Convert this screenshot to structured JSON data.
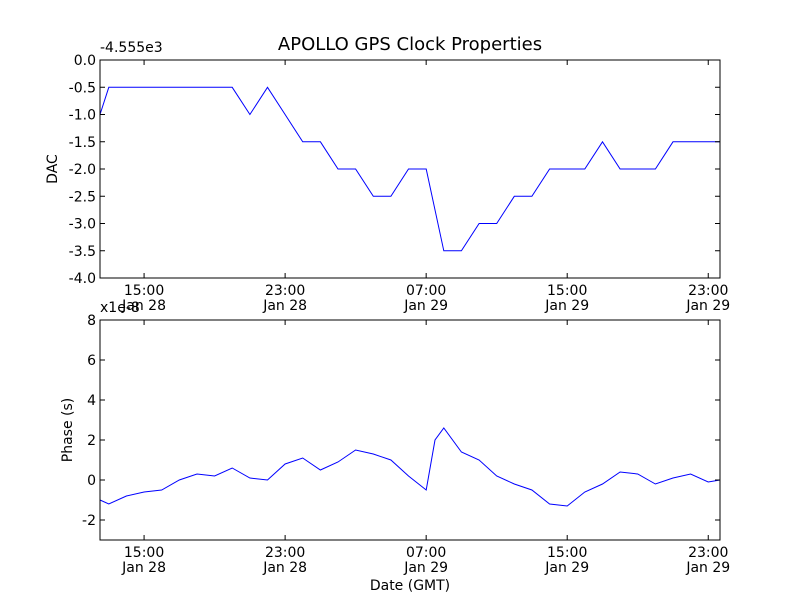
{
  "figure": {
    "title": "APOLLO GPS Clock Properties",
    "xlabel": "Date (GMT)",
    "x_tick_labels": [
      {
        "line1": "15:00",
        "line2": "Jan 28"
      },
      {
        "line1": "23:00",
        "line2": "Jan 28"
      },
      {
        "line1": "07:00",
        "line2": "Jan 29"
      },
      {
        "line1": "15:00",
        "line2": "Jan 29"
      },
      {
        "line1": "23:00",
        "line2": "Jan 29"
      }
    ]
  },
  "chart_data": [
    {
      "type": "line",
      "ylabel": "DAC",
      "y_offset_label": "-4.555e3",
      "ylim": [
        -4.0,
        0.0
      ],
      "xlim": [
        "Jan 28 12:30",
        "Jan 29 23:40"
      ],
      "x_ticks": [
        "Jan 28 15:00",
        "Jan 28 23:00",
        "Jan 29 07:00",
        "Jan 29 15:00",
        "Jan 29 23:00"
      ],
      "y_tick_labels": [
        "0.0",
        "-0.5",
        "-1.0",
        "-1.5",
        "-2.0",
        "-2.5",
        "-3.0",
        "-3.5",
        "-4.0"
      ],
      "grid": false,
      "series": [
        {
          "color": "#0000ff",
          "x": [
            "Jan 28 12:30",
            "Jan 28 13:00",
            "Jan 28 14:00",
            "Jan 28 15:00",
            "Jan 28 16:00",
            "Jan 28 17:00",
            "Jan 28 18:00",
            "Jan 28 19:00",
            "Jan 28 20:00",
            "Jan 28 21:00",
            "Jan 28 22:00",
            "Jan 28 23:00",
            "Jan 29 00:00",
            "Jan 29 01:00",
            "Jan 29 02:00",
            "Jan 29 03:00",
            "Jan 29 04:00",
            "Jan 29 05:00",
            "Jan 29 06:00",
            "Jan 29 07:00",
            "Jan 29 08:00",
            "Jan 29 09:00",
            "Jan 29 10:00",
            "Jan 29 11:00",
            "Jan 29 12:00",
            "Jan 29 13:00",
            "Jan 29 14:00",
            "Jan 29 15:00",
            "Jan 29 16:00",
            "Jan 29 17:00",
            "Jan 29 18:00",
            "Jan 29 19:00",
            "Jan 29 20:00",
            "Jan 29 21:00",
            "Jan 29 22:00",
            "Jan 29 23:00",
            "Jan 29 23:40"
          ],
          "values": [
            -1.0,
            -0.5,
            -0.5,
            -0.5,
            -0.5,
            -0.5,
            -0.5,
            -0.5,
            -0.5,
            -1.0,
            -0.5,
            -1.0,
            -1.5,
            -1.5,
            -2.0,
            -2.0,
            -2.5,
            -2.5,
            -2.0,
            -2.0,
            -3.5,
            -3.5,
            -3.0,
            -3.0,
            -2.5,
            -2.5,
            -2.0,
            -2.0,
            -2.0,
            -1.5,
            -2.0,
            -2.0,
            -2.0,
            -1.5,
            -1.5,
            -1.5,
            -1.5
          ]
        }
      ]
    },
    {
      "type": "line",
      "ylabel": "Phase (s)",
      "y_offset_label": "x1e-8",
      "ylim": [
        -3,
        8
      ],
      "xlim": [
        "Jan 28 12:30",
        "Jan 29 23:40"
      ],
      "x_ticks": [
        "Jan 28 15:00",
        "Jan 28 23:00",
        "Jan 29 07:00",
        "Jan 29 15:00",
        "Jan 29 23:00"
      ],
      "y_tick_labels": [
        "8",
        "6",
        "4",
        "2",
        "0",
        "-2"
      ],
      "grid": false,
      "series": [
        {
          "color": "#0000ff",
          "x": [
            "Jan 28 12:30",
            "Jan 28 13:00",
            "Jan 28 14:00",
            "Jan 28 15:00",
            "Jan 28 16:00",
            "Jan 28 17:00",
            "Jan 28 18:00",
            "Jan 28 19:00",
            "Jan 28 20:00",
            "Jan 28 21:00",
            "Jan 28 22:00",
            "Jan 28 23:00",
            "Jan 29 00:00",
            "Jan 29 01:00",
            "Jan 29 02:00",
            "Jan 29 03:00",
            "Jan 29 04:00",
            "Jan 29 05:00",
            "Jan 29 06:00",
            "Jan 29 07:00",
            "Jan 29 07:30",
            "Jan 29 08:00",
            "Jan 29 09:00",
            "Jan 29 10:00",
            "Jan 29 11:00",
            "Jan 29 12:00",
            "Jan 29 13:00",
            "Jan 29 14:00",
            "Jan 29 15:00",
            "Jan 29 16:00",
            "Jan 29 17:00",
            "Jan 29 18:00",
            "Jan 29 19:00",
            "Jan 29 20:00",
            "Jan 29 21:00",
            "Jan 29 22:00",
            "Jan 29 23:00",
            "Jan 29 23:40"
          ],
          "values": [
            -1.0,
            -1.2,
            -0.8,
            -0.6,
            -0.5,
            0.0,
            0.3,
            0.2,
            0.6,
            0.1,
            0.0,
            0.8,
            1.1,
            0.5,
            0.9,
            1.5,
            1.3,
            1.0,
            0.2,
            -0.5,
            2.0,
            2.6,
            1.4,
            1.0,
            0.2,
            -0.2,
            -0.5,
            -1.2,
            -1.3,
            -0.6,
            -0.2,
            0.4,
            0.3,
            -0.2,
            0.1,
            0.3,
            -0.1,
            0.0
          ]
        }
      ]
    }
  ]
}
